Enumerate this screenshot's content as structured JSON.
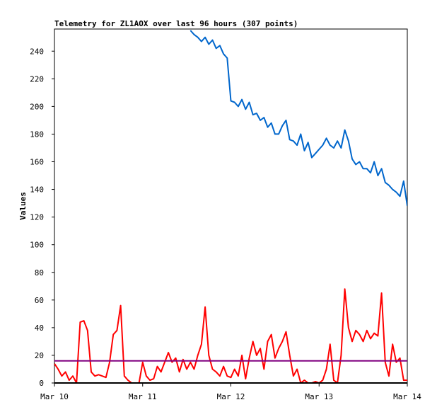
{
  "chart_data": {
    "type": "line",
    "title": "Telemetry for ZL1AOX over last 96 hours (307 points)",
    "y_label": "Values",
    "x": [
      0,
      1,
      2,
      3,
      4,
      5,
      6,
      7,
      8,
      9,
      10,
      11,
      12,
      13,
      14,
      15,
      16,
      17,
      18,
      19,
      20,
      21,
      22,
      23,
      24,
      25,
      26,
      27,
      28,
      29,
      30,
      31,
      32,
      33,
      34,
      35,
      36,
      37,
      38,
      39,
      40,
      41,
      42,
      43,
      44,
      45,
      46,
      47,
      48,
      49,
      50,
      51,
      52,
      53,
      54,
      55,
      56,
      57,
      58,
      59,
      60,
      61,
      62,
      63,
      64,
      65,
      66,
      67,
      68,
      69,
      70,
      71,
      72,
      73,
      74,
      75,
      76,
      77,
      78,
      79,
      80,
      81,
      82,
      83,
      84,
      85,
      86,
      87,
      88,
      89,
      90,
      91,
      92,
      93,
      94,
      95,
      96
    ],
    "xlim": [
      0,
      96
    ],
    "xticks": [
      {
        "value": 0,
        "label": "Mar 10"
      },
      {
        "value": 24,
        "label": "Mar 11"
      },
      {
        "value": 48,
        "label": "Mar 12"
      },
      {
        "value": 72,
        "label": "Mar 13"
      },
      {
        "value": 96,
        "label": "Mar 14"
      }
    ],
    "ylim": [
      0,
      256
    ],
    "yticks": [
      0,
      20,
      40,
      60,
      80,
      100,
      120,
      140,
      160,
      180,
      200,
      220,
      240
    ],
    "grid": false,
    "series": [
      {
        "color": "#0066cc",
        "values": [
          null,
          null,
          null,
          null,
          null,
          null,
          null,
          null,
          null,
          null,
          null,
          null,
          null,
          null,
          null,
          null,
          null,
          null,
          null,
          null,
          null,
          null,
          null,
          null,
          null,
          null,
          null,
          null,
          null,
          null,
          null,
          null,
          null,
          null,
          null,
          null,
          null,
          255,
          252,
          250,
          247,
          250,
          245,
          248,
          242,
          244,
          238,
          235,
          204,
          203,
          200,
          205,
          198,
          203,
          194,
          195,
          190,
          192,
          185,
          188,
          180,
          180,
          186,
          190,
          176,
          175,
          172,
          180,
          168,
          174,
          163,
          166,
          169,
          172,
          177,
          172,
          170,
          175,
          170,
          183,
          175,
          162,
          158,
          160,
          155,
          155,
          152,
          160,
          150,
          155,
          145,
          143,
          140,
          138,
          135,
          146,
          128
        ]
      },
      {
        "color": "#ff0000",
        "values": [
          14,
          10,
          5,
          8,
          2,
          5,
          0,
          44,
          45,
          38,
          8,
          5,
          6,
          5,
          4,
          15,
          35,
          38,
          56,
          5,
          2,
          0,
          0,
          0,
          15,
          5,
          2,
          3,
          12,
          8,
          15,
          22,
          15,
          18,
          8,
          17,
          10,
          15,
          10,
          20,
          28,
          55,
          20,
          10,
          8,
          5,
          12,
          5,
          4,
          10,
          5,
          20,
          3,
          18,
          30,
          20,
          25,
          10,
          30,
          35,
          18,
          25,
          30,
          37,
          20,
          5,
          10,
          0,
          2,
          0,
          0,
          1,
          0,
          2,
          10,
          28,
          2,
          0,
          20,
          68,
          40,
          30,
          38,
          35,
          30,
          38,
          32,
          36,
          34,
          65,
          15,
          5,
          28,
          15,
          18,
          2,
          2
        ]
      },
      {
        "color": "#800080",
        "values": [
          16,
          16,
          16,
          16,
          16,
          16,
          16,
          16,
          16,
          16,
          16,
          16,
          16,
          16,
          16,
          16,
          16,
          16,
          16,
          16,
          16,
          16,
          16,
          16,
          16,
          16,
          16,
          16,
          16,
          16,
          16,
          16,
          16,
          16,
          16,
          16,
          16,
          16,
          16,
          16,
          16,
          16,
          16,
          16,
          16,
          16,
          16,
          16,
          16,
          16,
          16,
          16,
          16,
          16,
          16,
          16,
          16,
          16,
          16,
          16,
          16,
          16,
          16,
          16,
          16,
          16,
          16,
          16,
          16,
          16,
          16,
          16,
          16,
          16,
          16,
          16,
          16,
          16,
          16,
          16,
          16,
          16,
          16,
          16,
          16,
          16,
          16,
          16,
          16,
          16,
          16,
          16,
          16,
          16,
          16,
          16,
          16
        ]
      }
    ]
  }
}
